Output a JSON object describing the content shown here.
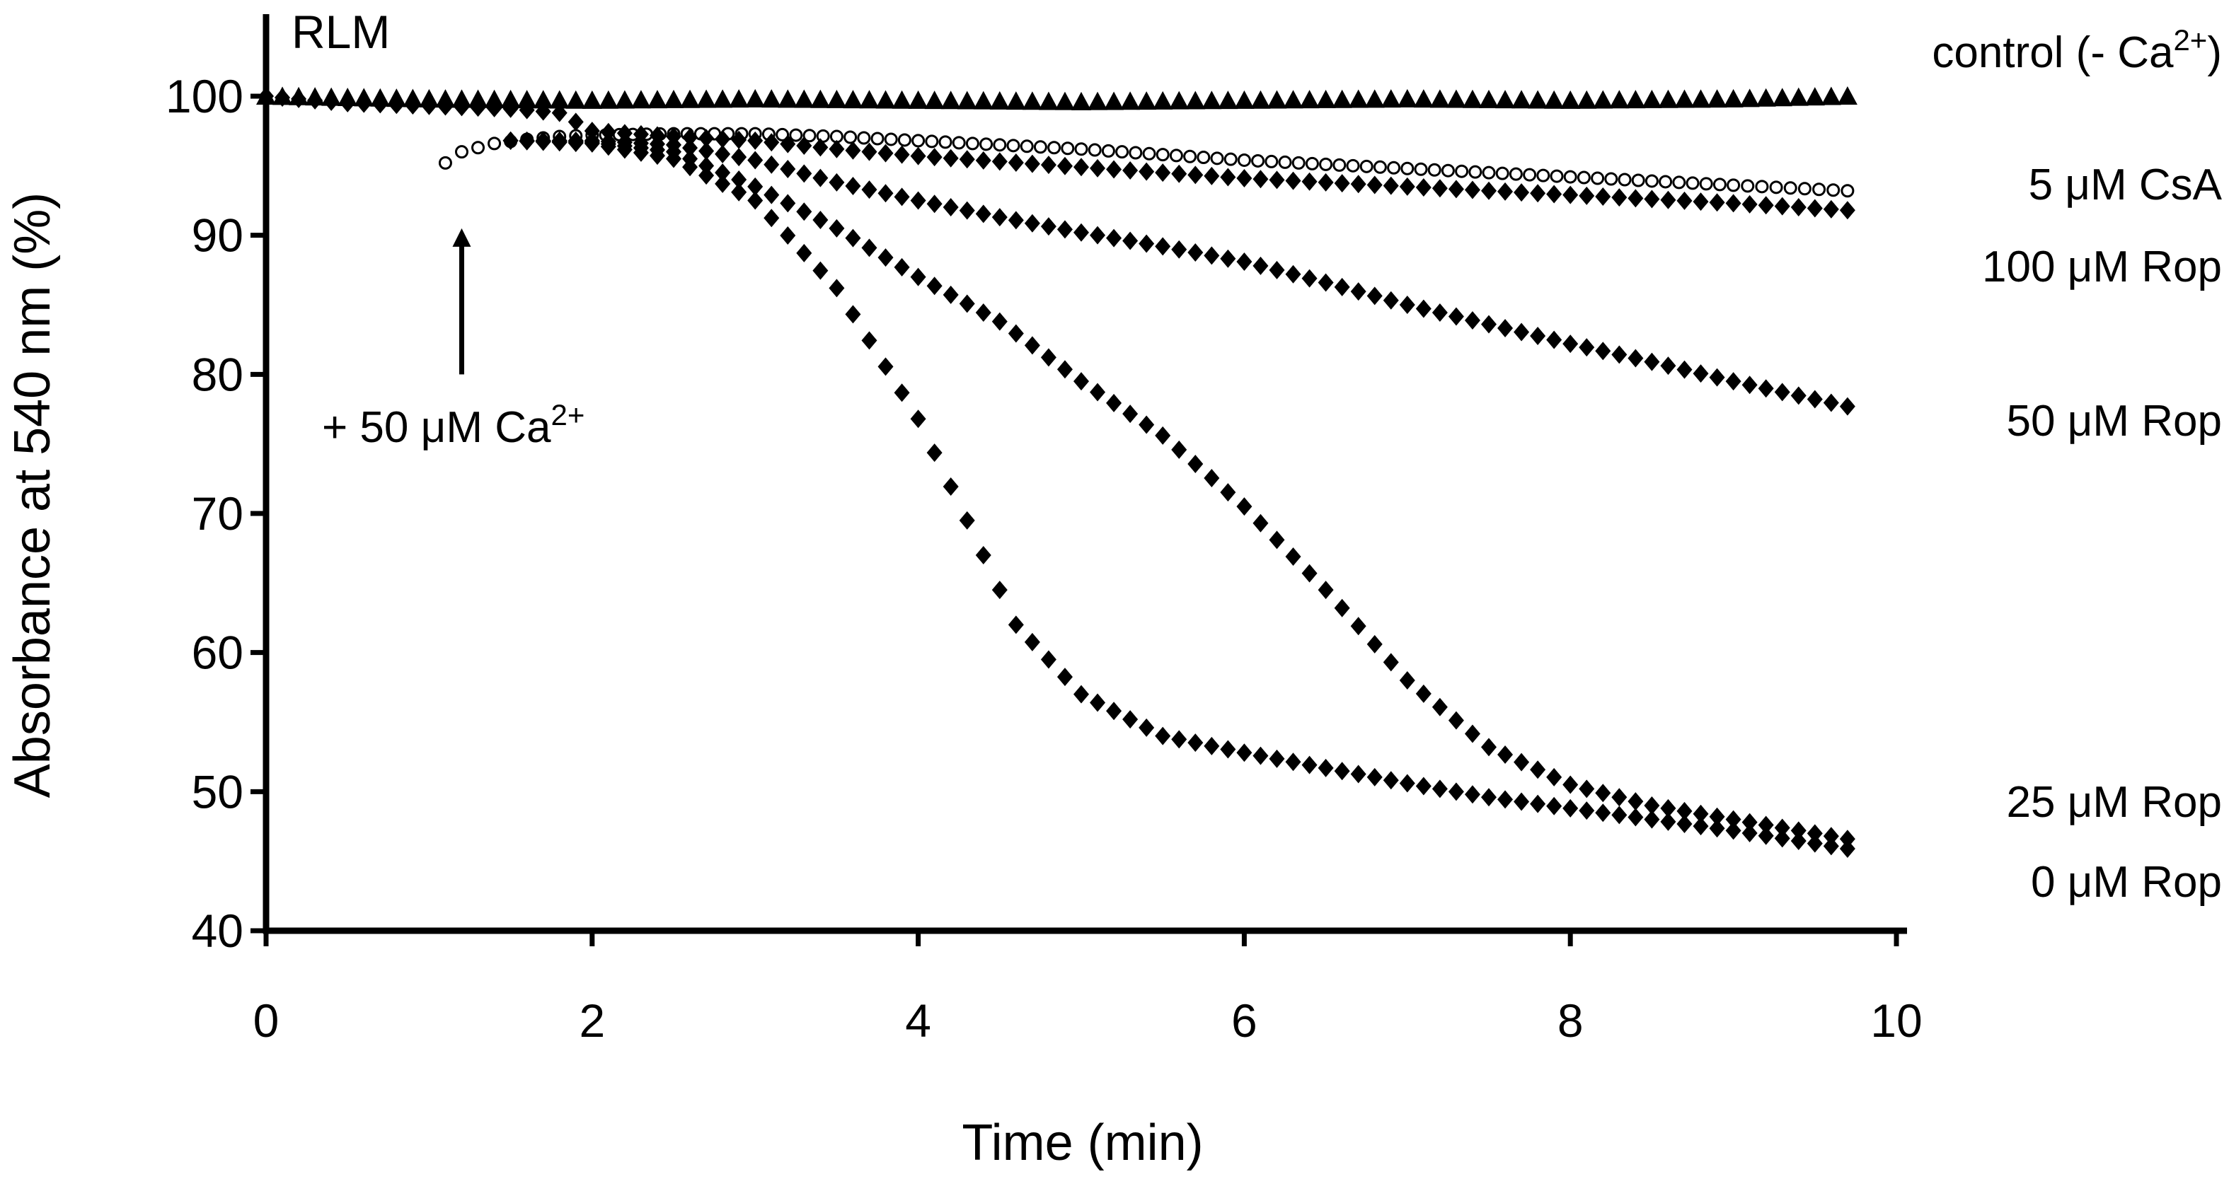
{
  "chart_data": {
    "type": "scatter",
    "panel_label": "RLM",
    "xlabel": "Time (min)",
    "ylabel": "Absorbance at 540 nm (%)",
    "xlim": [
      0,
      10
    ],
    "ylim": [
      40,
      100
    ],
    "xticks": [
      0,
      2,
      4,
      6,
      8,
      10
    ],
    "yticks": [
      40,
      50,
      60,
      70,
      80,
      90,
      100
    ],
    "grid": false,
    "legend": "labels at right end of each series",
    "annotation": {
      "text_main": "+ 50 μM Ca",
      "text_sup": "2+",
      "arrow_x": 1.2,
      "arrow_from_y": 80,
      "arrow_to_y": 90.5
    },
    "series": [
      {
        "name_main": "control (- Ca",
        "name_sup": "2+",
        "name_end": ")",
        "marker": "triangle",
        "x": [
          0,
          1,
          2,
          3,
          4,
          5,
          6,
          7,
          8,
          9,
          9.7
        ],
        "y": [
          100,
          99.8,
          99.7,
          99.8,
          99.7,
          99.6,
          99.7,
          99.8,
          99.7,
          99.8,
          100
        ]
      },
      {
        "name_main": "5 μM CsA",
        "marker": "open-circle",
        "x": [
          1.1,
          1.2,
          1.4,
          1.6,
          1.8,
          2,
          2.5,
          3,
          3.5,
          4,
          4.5,
          5,
          5.5,
          6,
          6.5,
          7,
          7.5,
          8,
          8.5,
          9,
          9.7
        ],
        "y": [
          95.2,
          96,
          96.6,
          96.9,
          97.1,
          97.2,
          97.3,
          97.3,
          97.1,
          96.8,
          96.5,
          96.2,
          95.8,
          95.4,
          95.1,
          94.8,
          94.5,
          94.2,
          93.9,
          93.6,
          93.2
        ]
      },
      {
        "name_main": "100 μM Rop",
        "marker": "diamond",
        "x": [
          0,
          0.5,
          1,
          1.5,
          1.8,
          2,
          2.5,
          3,
          3.5,
          4,
          4.5,
          5,
          5.5,
          6,
          6.5,
          7,
          7.5,
          8,
          8.5,
          9,
          9.7
        ],
        "y": [
          100,
          99.5,
          99.3,
          99.1,
          98.8,
          97.5,
          97.1,
          96.8,
          96.2,
          95.7,
          95.3,
          94.9,
          94.5,
          94.1,
          93.8,
          93.5,
          93.2,
          92.9,
          92.6,
          92.3,
          91.8
        ]
      },
      {
        "name_main": "50 μM Rop",
        "marker": "diamond",
        "x": [
          1.5,
          2,
          2.5,
          3,
          3.5,
          4,
          4.5,
          5,
          5.5,
          6,
          6.5,
          7,
          7.5,
          8,
          8.5,
          9,
          9.7
        ],
        "y": [
          96.8,
          96.8,
          96.5,
          95.4,
          93.8,
          92.5,
          91.3,
          90.2,
          89.2,
          88.1,
          86.6,
          85,
          83.6,
          82.2,
          80.9,
          79.5,
          77.7
        ]
      },
      {
        "name_main": "25 μM Rop",
        "marker": "diamond",
        "x": [
          1.5,
          2,
          2.5,
          3,
          3.5,
          4,
          4.5,
          5,
          5.5,
          6,
          6.5,
          7,
          7.5,
          8,
          8.5,
          9,
          9.7
        ],
        "y": [
          96.8,
          96.7,
          96,
          93.5,
          90.5,
          87,
          83.8,
          79.5,
          75.6,
          70.5,
          64.5,
          58,
          53.2,
          50.5,
          49,
          48,
          46.6
        ]
      },
      {
        "name_main": "0 μM Rop",
        "marker": "diamond",
        "x": [
          1.5,
          2,
          2.5,
          3,
          3.5,
          4,
          4.3,
          4.6,
          5,
          5.5,
          6,
          6.5,
          7,
          7.5,
          8,
          8.5,
          9,
          9.7
        ],
        "y": [
          96.8,
          96.6,
          95.5,
          92.5,
          86.2,
          76.8,
          69.5,
          62,
          57,
          54,
          52.8,
          51.7,
          50.6,
          49.6,
          48.8,
          48,
          47.2,
          45.9
        ]
      }
    ]
  }
}
